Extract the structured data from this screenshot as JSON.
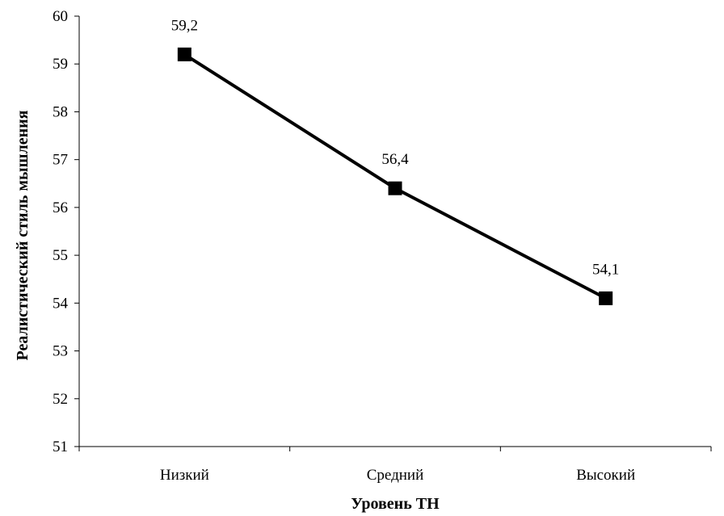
{
  "chart_data": {
    "type": "line",
    "title": "",
    "xlabel": "Уровень ТН",
    "ylabel": "Реалистический стиль мышления",
    "categories": [
      "Низкий",
      "Средний",
      "Высокий"
    ],
    "series": [
      {
        "values": [
          59.2,
          56.4,
          54.1
        ],
        "data_labels": [
          "59,2",
          "56,4",
          "54,1"
        ],
        "color": "#000000",
        "marker": "square"
      }
    ],
    "ylim": [
      51,
      60
    ],
    "yticks": [
      "51",
      "52",
      "53",
      "54",
      "55",
      "56",
      "57",
      "58",
      "59",
      "60"
    ],
    "grid": false,
    "legend": "none"
  }
}
